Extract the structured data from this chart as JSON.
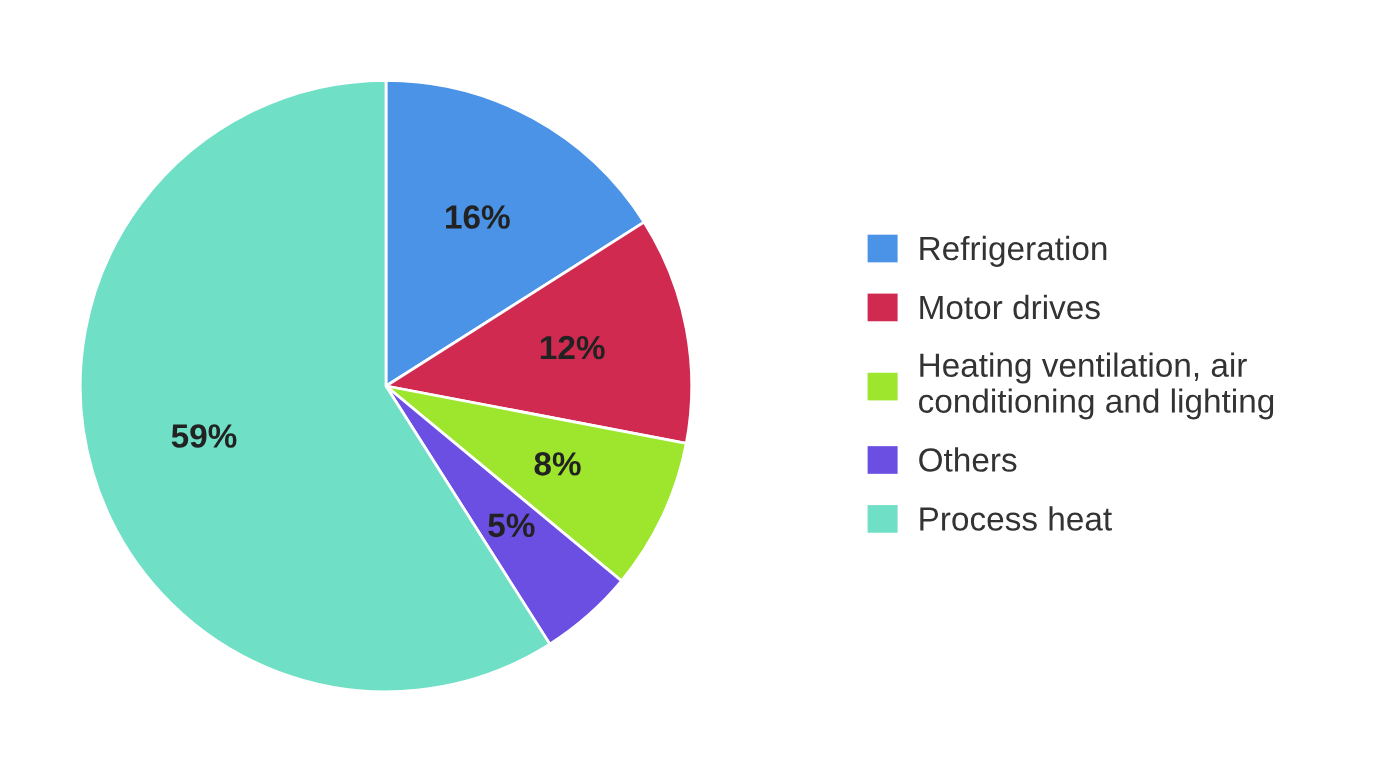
{
  "chart_data": {
    "type": "pie",
    "categories": [
      "Refrigeration",
      "Motor drives",
      "Heating ventilation, air\nconditioning and lighting",
      "Others",
      "Process heat"
    ],
    "values": [
      16,
      12,
      8,
      5,
      59
    ],
    "colors": [
      "#4a93e6",
      "#d12a50",
      "#9de62d",
      "#6b4fe3",
      "#6fdfc6"
    ],
    "value_labels": [
      "16%",
      "12%",
      "8%",
      "5%",
      "59%"
    ],
    "legend": "right"
  }
}
